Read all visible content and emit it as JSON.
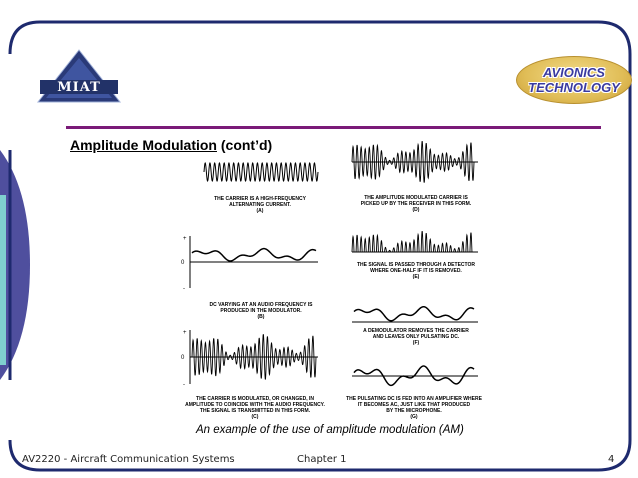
{
  "logo": {
    "text": "MIAT"
  },
  "badge": {
    "line1": "AVIONICS",
    "line2": "TECHNOLOGY"
  },
  "slide": {
    "title_underlined": "Amplitude Modulation",
    "title_rest": " (cont’d)"
  },
  "panels": {
    "a": {
      "line1": "THE CARRIER IS A HIGH-FREQUENCY",
      "line2": "ALTERNATING CURRENT.",
      "tag": "(A)"
    },
    "b": {
      "line1": "DC VARYING AT AN AUDIO FREQUENCY IS",
      "line2": "PRODUCED IN THE MODULATOR.",
      "tag": "(B)"
    },
    "c": {
      "line1": "THE CARRIER IS MODULATED, OR CHANGED, IN",
      "line2": "AMPLITUDE TO COINCIDE WITH THE AUDIO FREQUENCY.",
      "line3": "THE SIGNAL IS TRANSMITTED IN THIS FORM.",
      "tag": "(C)"
    },
    "d": {
      "line1": "THE AMPLITUDE MODULATED CARRIER IS",
      "line2": "PICKED UP BY THE RECEIVER IN THIS FORM.",
      "tag": "(D)"
    },
    "e": {
      "line1": "THE SIGNAL IS PASSED THROUGH A DETECTOR",
      "line2": "WHERE ONE-HALF IF IT IS REMOVED.",
      "tag": "(E)"
    },
    "f": {
      "line1": "A DEMODULATOR REMOVES THE CARRIER",
      "line2": "AND LEAVES ONLY PULSATING DC.",
      "tag": "(F)"
    },
    "g": {
      "line1": "THE PULSATING DC IS FED INTO AN AMPLIFIER WHERE",
      "line2": "IT BECOMES AC, JUST LIKE THAT PRODUCED",
      "line3": "BY THE MICROPHONE.",
      "tag": "(G)"
    }
  },
  "axis_marks": {
    "plus": "+",
    "zero": "0",
    "minus": "-"
  },
  "caption": "An example of the use of amplitude modulation (AM)",
  "footer": {
    "course": "AV2220 - Aircraft Communication Systems",
    "chapter": "Chapter 1",
    "page": "4"
  },
  "colors": {
    "frame_navy": "#1e2a6e",
    "side_band": "#4f4f9e",
    "accent_teal": "#7fd0cf",
    "title_rule": "#7a1a78",
    "badge_gold": "#e0bd57",
    "badge_text": "#3a3aa0"
  }
}
